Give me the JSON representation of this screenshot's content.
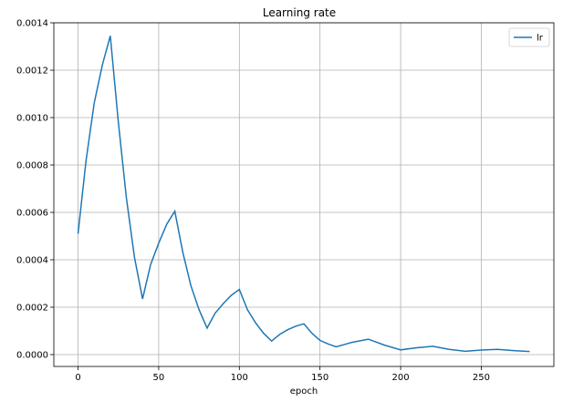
{
  "chart_data": {
    "type": "line",
    "title": "Learning rate",
    "xlabel": "epoch",
    "ylabel": "",
    "xlim": [
      -15,
      295
    ],
    "ylim": [
      -5e-05,
      0.0014
    ],
    "xticks": [
      0,
      50,
      100,
      150,
      200,
      250
    ],
    "xtick_labels": [
      "0",
      "50",
      "100",
      "150",
      "200",
      "250"
    ],
    "yticks": [
      0.0,
      0.0002,
      0.0004,
      0.0006,
      0.0008,
      0.001,
      0.0012,
      0.0014
    ],
    "ytick_labels": [
      "0.0000",
      "0.0002",
      "0.0004",
      "0.0006",
      "0.0008",
      "0.0010",
      "0.0012",
      "0.0014"
    ],
    "grid": true,
    "legend_position": "top-right",
    "colors": {
      "series": "#1f77b4",
      "grid": "#b0b0b0",
      "axis": "#000000"
    },
    "series": [
      {
        "name": "lr",
        "x": [
          0,
          5,
          10,
          15,
          20,
          25,
          30,
          35,
          40,
          45,
          50,
          55,
          60,
          65,
          70,
          75,
          80,
          85,
          90,
          95,
          100,
          105,
          110,
          115,
          120,
          125,
          130,
          135,
          140,
          145,
          150,
          155,
          160,
          170,
          180,
          190,
          200,
          210,
          220,
          230,
          240,
          250,
          260,
          270,
          280
        ],
        "y": [
          0.00051,
          0.00082,
          0.00106,
          0.00122,
          0.001345,
          0.00098,
          0.00066,
          0.00041,
          0.000235,
          0.00038,
          0.00047,
          0.00055,
          0.000605,
          0.00043,
          0.00029,
          0.00019,
          0.000112,
          0.000175,
          0.000215,
          0.00025,
          0.000275,
          0.00019,
          0.000135,
          9e-05,
          5.7e-05,
          8.5e-05,
          0.000105,
          0.00012,
          0.00013,
          9e-05,
          6e-05,
          4.5e-05,
          3.3e-05,
          5.2e-05,
          6.5e-05,
          4e-05,
          2e-05,
          2.9e-05,
          3.5e-05,
          2.2e-05,
          1.4e-05,
          1.9e-05,
          2.2e-05,
          1.7e-05,
          1.3e-05
        ]
      }
    ]
  }
}
